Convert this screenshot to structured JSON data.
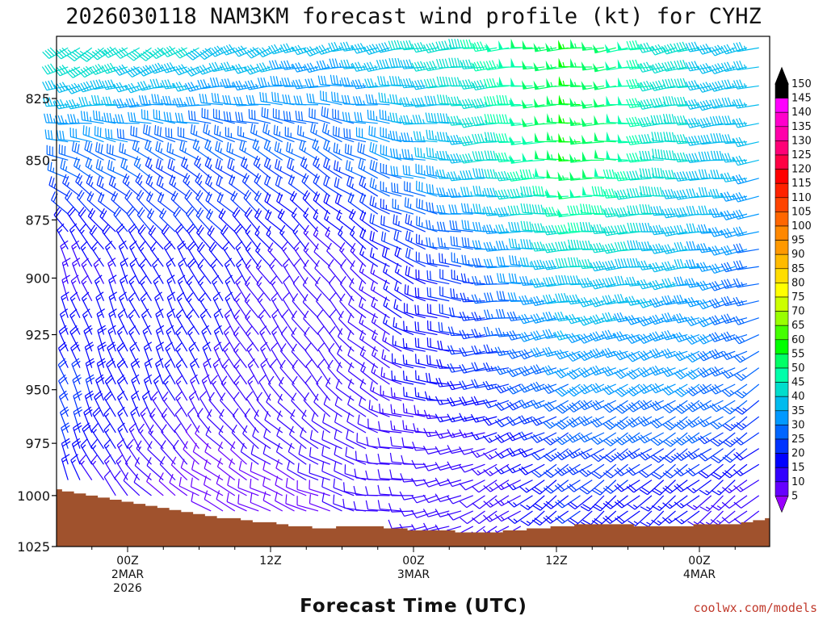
{
  "chart_data": {
    "type": "wind-barb-time-height",
    "title": "2026030118 NAM3KM forecast wind profile (kt) for CYHZ",
    "xlabel": "Forecast Time (UTC)",
    "ylabel": "",
    "units": "kt",
    "x_ticks": [
      {
        "hour": 6,
        "lines": [
          "00Z",
          "2MAR",
          "2026"
        ]
      },
      {
        "hour": 18,
        "lines": [
          "12Z"
        ]
      },
      {
        "hour": 30,
        "lines": [
          "00Z",
          "3MAR"
        ]
      },
      {
        "hour": 42,
        "lines": [
          "12Z"
        ]
      },
      {
        "hour": 54,
        "lines": [
          "00Z",
          "4MAR"
        ]
      }
    ],
    "x_range_hours": [
      0,
      60
    ],
    "y_ticks": [
      825,
      850,
      875,
      900,
      925,
      950,
      975,
      1000,
      1025
    ],
    "y_range_hPa": [
      1025,
      805
    ],
    "colorbar": {
      "levels": [
        5,
        10,
        15,
        20,
        25,
        30,
        35,
        40,
        45,
        50,
        55,
        60,
        65,
        70,
        75,
        80,
        85,
        90,
        95,
        100,
        105,
        110,
        115,
        120,
        125,
        130,
        135,
        140,
        145,
        150
      ],
      "colors": [
        "#9900ff",
        "#6600ff",
        "#3300ff",
        "#0000ff",
        "#0033ff",
        "#0066ff",
        "#0099ff",
        "#00bbee",
        "#00ddcc",
        "#00ffaa",
        "#00ff66",
        "#00ff00",
        "#44ff00",
        "#99ff00",
        "#ccff00",
        "#ffff00",
        "#ffdd00",
        "#ffbb00",
        "#ff9900",
        "#ff8800",
        "#ff6600",
        "#ff4400",
        "#ff2200",
        "#ff0000",
        "#ff0044",
        "#ff0077",
        "#ff00aa",
        "#ff00cc",
        "#ff00ff",
        "#000000"
      ]
    },
    "wind_keyframes": [
      {
        "hour": 0,
        "levels": [
          [
            805,
            45,
            235
          ],
          [
            850,
            30,
            290
          ],
          [
            900,
            12,
            340
          ],
          [
            950,
            22,
            340
          ],
          [
            975,
            22,
            340
          ],
          [
            1000,
            15,
            340
          ]
        ]
      },
      {
        "hour": 12,
        "levels": [
          [
            805,
            40,
            240
          ],
          [
            850,
            25,
            300
          ],
          [
            900,
            18,
            330
          ],
          [
            950,
            15,
            335
          ],
          [
            975,
            10,
            320
          ],
          [
            1000,
            8,
            300
          ]
        ]
      },
      {
        "hour": 24,
        "levels": [
          [
            805,
            35,
            255
          ],
          [
            850,
            25,
            300
          ],
          [
            900,
            10,
            320
          ],
          [
            950,
            10,
            320
          ],
          [
            975,
            12,
            300
          ],
          [
            1000,
            10,
            290
          ]
        ]
      },
      {
        "hour": 36,
        "levels": [
          [
            805,
            45,
            265
          ],
          [
            850,
            40,
            265
          ],
          [
            900,
            25,
            275
          ],
          [
            950,
            20,
            255
          ],
          [
            975,
            12,
            250
          ],
          [
            1000,
            10,
            240
          ]
        ]
      },
      {
        "hour": 44,
        "levels": [
          [
            805,
            55,
            265
          ],
          [
            850,
            55,
            270
          ],
          [
            900,
            40,
            265
          ],
          [
            950,
            30,
            240
          ],
          [
            975,
            25,
            240
          ],
          [
            1000,
            20,
            230
          ]
        ]
      },
      {
        "hour": 54,
        "levels": [
          [
            805,
            40,
            255
          ],
          [
            850,
            40,
            270
          ],
          [
            900,
            35,
            260
          ],
          [
            950,
            30,
            240
          ],
          [
            975,
            25,
            235
          ],
          [
            1000,
            15,
            230
          ]
        ]
      },
      {
        "hour": 60,
        "levels": [
          [
            805,
            35,
            255
          ],
          [
            850,
            35,
            260
          ],
          [
            900,
            25,
            255
          ],
          [
            950,
            25,
            235
          ],
          [
            975,
            20,
            235
          ],
          [
            1000,
            10,
            230
          ]
        ]
      }
    ],
    "surface_pressure_hPa": [
      [
        0,
        997
      ],
      [
        1,
        998
      ],
      [
        2,
        999
      ],
      [
        3,
        1000
      ],
      [
        4,
        1001
      ],
      [
        5,
        1002
      ],
      [
        6,
        1003
      ],
      [
        7,
        1004
      ],
      [
        8,
        1005
      ],
      [
        9,
        1006
      ],
      [
        10,
        1007
      ],
      [
        11,
        1008
      ],
      [
        12,
        1009
      ],
      [
        13,
        1010
      ],
      [
        14,
        1011
      ],
      [
        15,
        1011
      ],
      [
        16,
        1012
      ],
      [
        17,
        1013
      ],
      [
        18,
        1013
      ],
      [
        19,
        1014
      ],
      [
        20,
        1015
      ],
      [
        21,
        1015
      ],
      [
        22,
        1016
      ],
      [
        23,
        1016
      ],
      [
        24,
        1015
      ],
      [
        25,
        1015
      ],
      [
        26,
        1015
      ],
      [
        27,
        1015
      ],
      [
        28,
        1016
      ],
      [
        29,
        1016
      ],
      [
        30,
        1017
      ],
      [
        31,
        1017
      ],
      [
        32,
        1017
      ],
      [
        33,
        1017
      ],
      [
        34,
        1018
      ],
      [
        35,
        1018
      ],
      [
        36,
        1018
      ],
      [
        37,
        1018
      ],
      [
        38,
        1017
      ],
      [
        39,
        1017
      ],
      [
        40,
        1016
      ],
      [
        41,
        1016
      ],
      [
        42,
        1015
      ],
      [
        43,
        1015
      ],
      [
        44,
        1014
      ],
      [
        45,
        1014
      ],
      [
        46,
        1014
      ],
      [
        47,
        1014
      ],
      [
        48,
        1014
      ],
      [
        49,
        1015
      ],
      [
        50,
        1015
      ],
      [
        51,
        1015
      ],
      [
        52,
        1015
      ],
      [
        53,
        1015
      ],
      [
        54,
        1014
      ],
      [
        55,
        1014
      ],
      [
        56,
        1014
      ],
      [
        57,
        1014
      ],
      [
        58,
        1013
      ],
      [
        59,
        1012
      ],
      [
        60,
        1011
      ]
    ]
  },
  "footer": {
    "credit": "coolwx.com/models"
  }
}
